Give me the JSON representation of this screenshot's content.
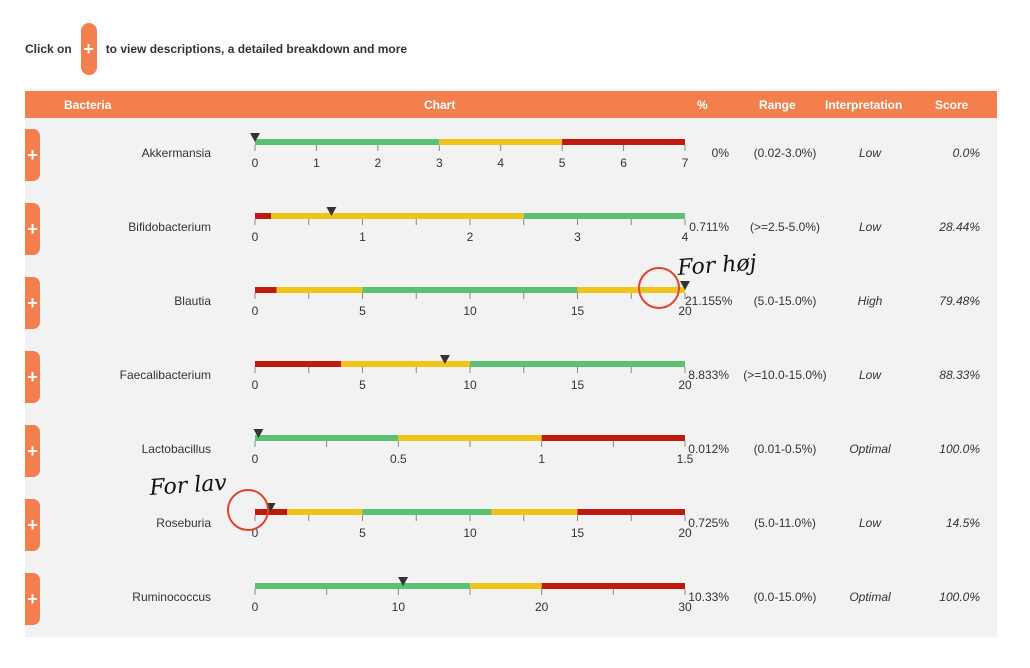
{
  "intro": {
    "prefix": "Click on",
    "button": "+",
    "suffix": "to view descriptions, a detailed breakdown and more"
  },
  "header": {
    "bacteria": "Bacteria",
    "chart": "Chart",
    "percent": "%",
    "range": "Range",
    "interpretation": "Interpretation",
    "score": "Score"
  },
  "colors": {
    "accent": "#f47f4e",
    "green": "#5cc173",
    "yellow": "#f0c419",
    "red": "#c0190f",
    "marker": "#333333",
    "annotation": "#e0452c"
  },
  "rows": [
    {
      "name": "Akkermansia",
      "percent": "0%",
      "range": "(0.02-3.0%)",
      "interpretation": "Low",
      "score": "0.0%",
      "chart": {
        "min": 0,
        "max": 7,
        "ticks": [
          0,
          1,
          2,
          3,
          4,
          5,
          6,
          7
        ],
        "tick_labels": [
          "0",
          "1",
          "2",
          "3",
          "4",
          "5",
          "6",
          "7"
        ],
        "marker": 0,
        "segments": [
          {
            "from": 0,
            "to": 3,
            "color": "green"
          },
          {
            "from": 3,
            "to": 5,
            "color": "yellow"
          },
          {
            "from": 5,
            "to": 7,
            "color": "red"
          }
        ]
      }
    },
    {
      "name": "Bifidobacterium",
      "percent": "0.711%",
      "range": "(>=2.5-5.0%)",
      "interpretation": "Low",
      "score": "28.44%",
      "chart": {
        "min": 0,
        "max": 4,
        "ticks": [
          0,
          0.5,
          1,
          1.5,
          2,
          2.5,
          3,
          3.5,
          4
        ],
        "tick_labels": [
          "0",
          "",
          "1",
          "",
          "2",
          "",
          "3",
          "",
          "4"
        ],
        "marker": 0.711,
        "segments": [
          {
            "from": 0,
            "to": 0.15,
            "color": "red"
          },
          {
            "from": 0.15,
            "to": 2.5,
            "color": "yellow"
          },
          {
            "from": 2.5,
            "to": 4,
            "color": "green"
          }
        ]
      }
    },
    {
      "name": "Blautia",
      "percent": "21.155%",
      "range": "(5.0-15.0%)",
      "interpretation": "High",
      "score": "79.48%",
      "chart": {
        "min": 0,
        "max": 20,
        "ticks": [
          0,
          2.5,
          5,
          7.5,
          10,
          12.5,
          15,
          17.5,
          20
        ],
        "tick_labels": [
          "0",
          "",
          "5",
          "",
          "10",
          "",
          "15",
          "",
          "20"
        ],
        "marker": 20,
        "segments": [
          {
            "from": 0,
            "to": 1,
            "color": "red"
          },
          {
            "from": 1,
            "to": 5,
            "color": "yellow"
          },
          {
            "from": 5,
            "to": 15,
            "color": "green"
          },
          {
            "from": 15,
            "to": 20,
            "color": "yellow"
          }
        ]
      }
    },
    {
      "name": "Faecalibacterium",
      "percent": "8.833%",
      "range": "(>=10.0-15.0%)",
      "interpretation": "Low",
      "score": "88.33%",
      "chart": {
        "min": 0,
        "max": 20,
        "ticks": [
          0,
          2.5,
          5,
          7.5,
          10,
          12.5,
          15,
          17.5,
          20
        ],
        "tick_labels": [
          "0",
          "",
          "5",
          "",
          "10",
          "",
          "15",
          "",
          "20"
        ],
        "marker": 8.833,
        "segments": [
          {
            "from": 0,
            "to": 4,
            "color": "red"
          },
          {
            "from": 4,
            "to": 10,
            "color": "yellow"
          },
          {
            "from": 10,
            "to": 20,
            "color": "green"
          }
        ]
      }
    },
    {
      "name": "Lactobacillus",
      "percent": "0.012%",
      "range": "(0.01-0.5%)",
      "interpretation": "Optimal",
      "score": "100.0%",
      "chart": {
        "min": 0,
        "max": 1.5,
        "ticks": [
          0,
          0.25,
          0.5,
          0.75,
          1,
          1.25,
          1.5
        ],
        "tick_labels": [
          "0",
          "",
          "0.5",
          "",
          "1",
          "",
          "1.5"
        ],
        "marker": 0.012,
        "segments": [
          {
            "from": 0,
            "to": 0.5,
            "color": "green"
          },
          {
            "from": 0.5,
            "to": 1,
            "color": "yellow"
          },
          {
            "from": 1,
            "to": 1.5,
            "color": "red"
          }
        ]
      }
    },
    {
      "name": "Roseburia",
      "percent": "0.725%",
      "range": "(5.0-11.0%)",
      "interpretation": "Low",
      "score": "14.5%",
      "chart": {
        "min": 0,
        "max": 20,
        "ticks": [
          0,
          2.5,
          5,
          7.5,
          10,
          12.5,
          15,
          17.5,
          20
        ],
        "tick_labels": [
          "0",
          "",
          "5",
          "",
          "10",
          "",
          "15",
          "",
          "20"
        ],
        "marker": 0.725,
        "segments": [
          {
            "from": 0,
            "to": 1.5,
            "color": "red"
          },
          {
            "from": 1.5,
            "to": 5,
            "color": "yellow"
          },
          {
            "from": 5,
            "to": 11,
            "color": "green"
          },
          {
            "from": 11,
            "to": 15,
            "color": "yellow"
          },
          {
            "from": 15,
            "to": 20,
            "color": "red"
          }
        ]
      }
    },
    {
      "name": "Ruminococcus",
      "percent": "10.33%",
      "range": "(0.0-15.0%)",
      "interpretation": "Optimal",
      "score": "100.0%",
      "chart": {
        "min": 0,
        "max": 30,
        "ticks": [
          0,
          5,
          10,
          15,
          20,
          25,
          30
        ],
        "tick_labels": [
          "0",
          "",
          "10",
          "",
          "20",
          "",
          "30"
        ],
        "marker": 10.33,
        "segments": [
          {
            "from": 0,
            "to": 15,
            "color": "green"
          },
          {
            "from": 15,
            "to": 20,
            "color": "yellow"
          },
          {
            "from": 20,
            "to": 30,
            "color": "red"
          }
        ]
      }
    }
  ],
  "annotations": [
    {
      "text": "For høj",
      "row": 2
    },
    {
      "text": "For lav",
      "row": 5
    }
  ]
}
